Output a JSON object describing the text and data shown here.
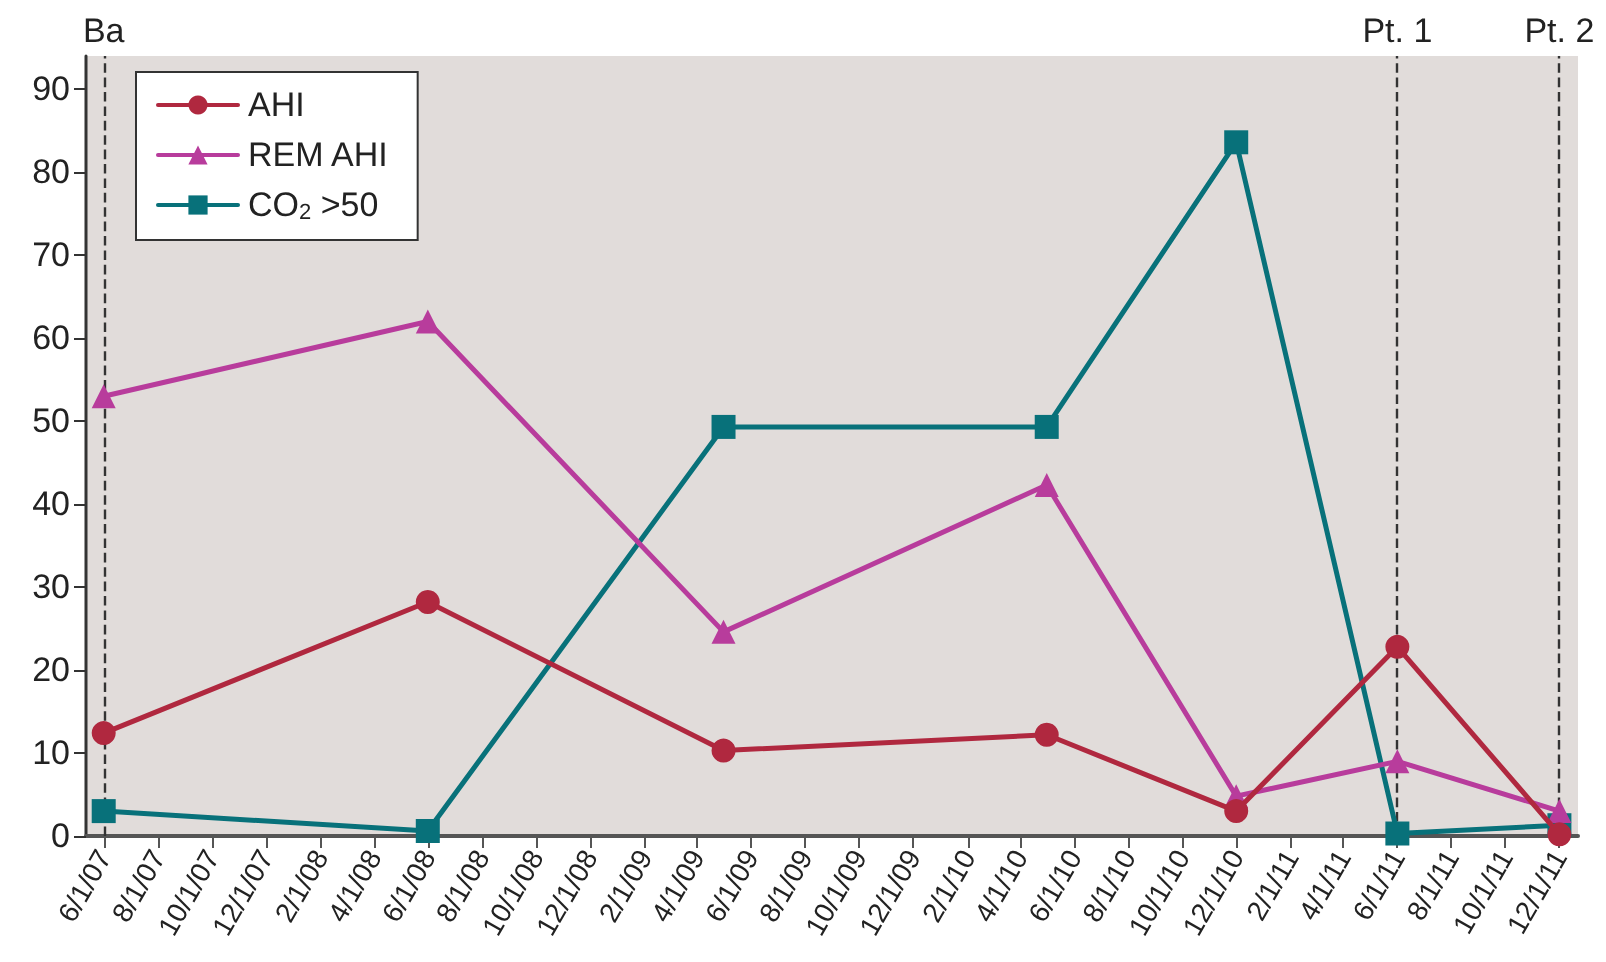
{
  "chart_data": {
    "type": "line",
    "x": [
      "2007-06-01",
      "2008-06-01",
      "2009-05-01",
      "2010-05-01",
      "2010-12-01",
      "2011-06-01",
      "2011-12-01"
    ],
    "series": [
      {
        "name": "AHI",
        "color": "#b0283f",
        "marker": "circle",
        "values": [
          12.4,
          28.2,
          10.3,
          12.2,
          3,
          22.8,
          0.2
        ]
      },
      {
        "name": "REM AHI",
        "color": "#b83c9c",
        "marker": "triangle",
        "values": [
          53,
          62,
          24.6,
          42.3,
          4.8,
          9,
          3
        ]
      },
      {
        "name": "CO$_{2}$ >50",
        "color": "#08717a",
        "marker": "square",
        "values": [
          3,
          0.6,
          49.3,
          49.3,
          83.6,
          0.3,
          1.3
        ]
      }
    ],
    "xlim": [
      "2007-05-12",
      "2011-12-22"
    ],
    "xticks": [
      {
        "value": "2007-06-01",
        "label": "6/1/07"
      },
      {
        "value": "2007-08-01",
        "label": "8/1/07"
      },
      {
        "value": "2007-10-01",
        "label": "10/1/07"
      },
      {
        "value": "2007-12-01",
        "label": "12/1/07"
      },
      {
        "value": "2008-02-01",
        "label": "2/1/08"
      },
      {
        "value": "2008-04-01",
        "label": "4/1/08"
      },
      {
        "value": "2008-06-01",
        "label": "6/1/08"
      },
      {
        "value": "2008-08-01",
        "label": "8/1/08"
      },
      {
        "value": "2008-10-01",
        "label": "10/1/08"
      },
      {
        "value": "2008-12-01",
        "label": "12/1/08"
      },
      {
        "value": "2009-02-01",
        "label": "2/1/09"
      },
      {
        "value": "2009-04-01",
        "label": "4/1/09"
      },
      {
        "value": "2009-06-01",
        "label": "6/1/09"
      },
      {
        "value": "2009-08-01",
        "label": "8/1/09"
      },
      {
        "value": "2009-10-01",
        "label": "10/1/09"
      },
      {
        "value": "2009-12-01",
        "label": "12/1/09"
      },
      {
        "value": "2010-02-01",
        "label": "2/1/10"
      },
      {
        "value": "2010-04-01",
        "label": "4/1/10"
      },
      {
        "value": "2010-06-01",
        "label": "6/1/10"
      },
      {
        "value": "2010-08-01",
        "label": "8/1/10"
      },
      {
        "value": "2010-10-01",
        "label": "10/1/10"
      },
      {
        "value": "2010-12-01",
        "label": "12/1/10"
      },
      {
        "value": "2011-02-01",
        "label": "2/1/11"
      },
      {
        "value": "2011-04-01",
        "label": "4/1/11"
      },
      {
        "value": "2011-06-01",
        "label": "6/1/11"
      },
      {
        "value": "2011-08-01",
        "label": "8/1/11"
      },
      {
        "value": "2011-10-01",
        "label": "10/1/11"
      },
      {
        "value": "2011-12-01",
        "label": "12/1/11"
      }
    ],
    "ylim": [
      0,
      94
    ],
    "yticks": [
      0,
      10,
      20,
      30,
      40,
      50,
      60,
      70,
      80,
      90
    ],
    "ref_lines": [
      {
        "axis": "x",
        "value": "2007-06-01",
        "label": "Ba",
        "line_style": "dashed",
        "color": "#333333"
      },
      {
        "axis": "x",
        "value": "2011-06-01",
        "label": "Pt. 1",
        "line_style": "dashed",
        "color": "#333333"
      },
      {
        "axis": "x",
        "value": "2011-12-01",
        "label": "Pt. 2",
        "line_style": "dashed",
        "color": "#333333"
      }
    ],
    "grid": false,
    "legend": "top left",
    "line_style": "solid"
  }
}
